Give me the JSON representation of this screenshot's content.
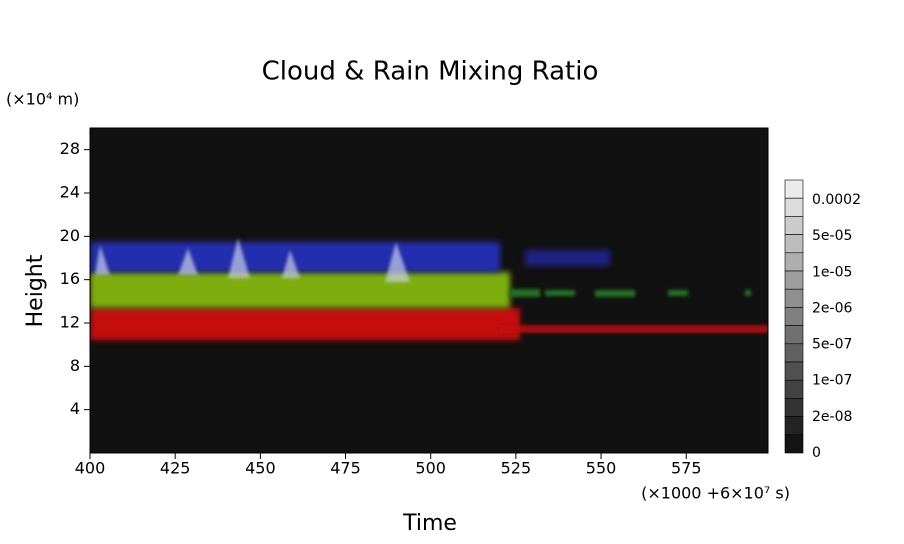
{
  "chart_data": {
    "type": "heatmap",
    "title": "Cloud & Rain Mixing Ratio",
    "x_label": "Time",
    "y_label": "Height",
    "x_unit": "(×1000 +6×10⁷ s)",
    "y_unit": "(×10⁴ m)",
    "xlim": [
      400,
      599
    ],
    "xticks": [
      400,
      425,
      450,
      475,
      500,
      525,
      550,
      575
    ],
    "ylim": [
      0,
      30
    ],
    "yticks": [
      4,
      8,
      12,
      16,
      20,
      24,
      28
    ],
    "colorbar_labels": [
      "0.0002",
      "5e-05",
      "1e-05",
      "2e-06",
      "5e-07",
      "1e-07",
      "2e-08",
      "0"
    ]
  }
}
